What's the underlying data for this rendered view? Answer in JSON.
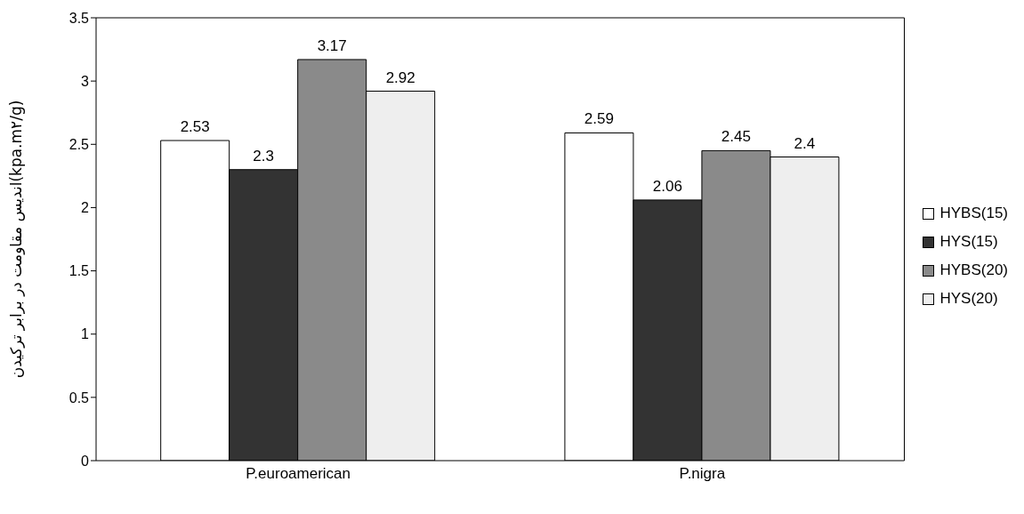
{
  "chart_data": {
    "type": "bar",
    "ylabel": "اندیس مقاومت در برابر ترکیدن(kpa.m۲/g)",
    "categories": [
      "P.euroamerican",
      "P.nigra"
    ],
    "series": [
      {
        "name": "HYBS(15)",
        "color": "#ffffff",
        "values": [
          2.53,
          2.59
        ]
      },
      {
        "name": "HYS(15)",
        "color": "#333333",
        "values": [
          2.3,
          2.06
        ]
      },
      {
        "name": "HYBS(20)",
        "color": "#8a8a8a",
        "values": [
          3.17,
          2.45
        ]
      },
      {
        "name": "HYS(20)",
        "color": "#eeeeee",
        "values": [
          2.92,
          2.4
        ]
      }
    ],
    "ylim": [
      0,
      3.5
    ],
    "yticks": [
      0,
      0.5,
      1,
      1.5,
      2,
      2.5,
      3,
      3.5
    ],
    "grid": false,
    "legend": "right",
    "data_labels": true
  }
}
